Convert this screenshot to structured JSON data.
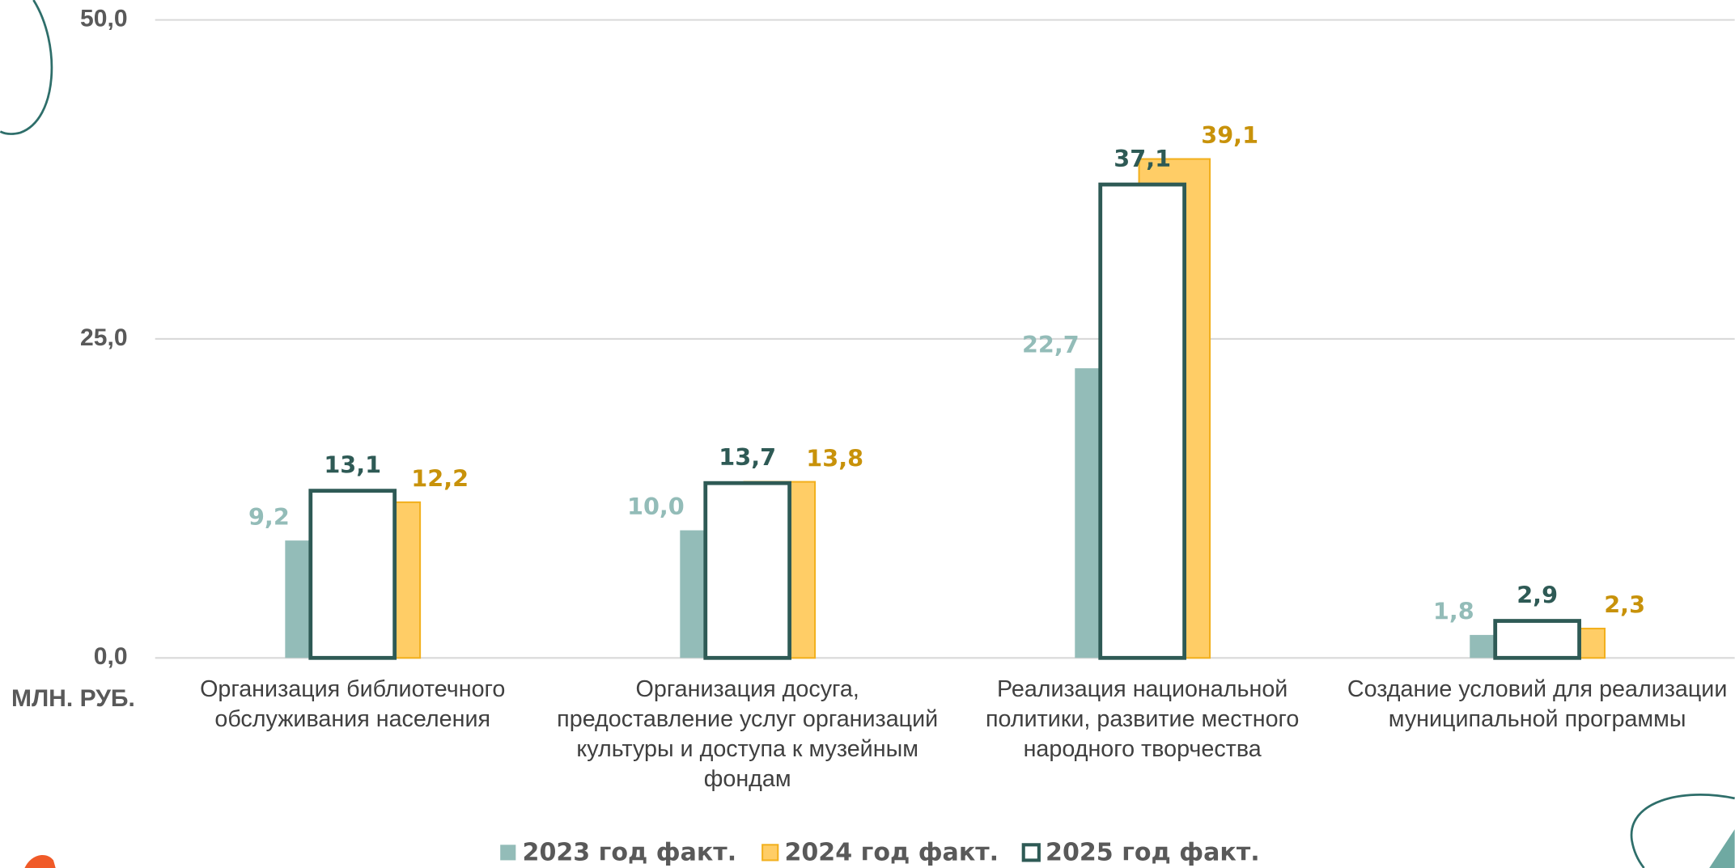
{
  "chart_data": {
    "type": "bar",
    "y_unit_label": "МЛН. РУБ.",
    "categories": [
      "Организация библиотечного обслуживания населения",
      "Организация досуга, предоставление услуг организаций культуры и доступа к музейным фондам",
      "Реализация национальной политики, развитие местного народного творчества",
      "Создание условий для реализации муниципальной программы"
    ],
    "series": [
      {
        "name": "2023 год факт.",
        "color": "#93bcb8",
        "values": [
          9.2,
          10.0,
          22.7,
          1.8
        ],
        "value_labels": [
          "9,2",
          "10,0",
          "22,7",
          "1,8"
        ]
      },
      {
        "name": "2024 год факт.",
        "color": "#ffcd66",
        "border_color": "#f2b01e",
        "values": [
          12.2,
          13.8,
          39.1,
          2.3
        ],
        "value_labels": [
          "12,2",
          "13,8",
          "39,1",
          "2,3"
        ]
      },
      {
        "name": "2025 год факт.",
        "color": "#ffffff",
        "border_color": "#2e5a55",
        "values": [
          13.1,
          13.7,
          37.1,
          2.9
        ],
        "value_labels": [
          "13,1",
          "13,7",
          "37,1",
          "2,9"
        ]
      }
    ],
    "ylim": [
      0,
      50
    ],
    "yticks": [
      {
        "value": 0,
        "label": "0,0"
      },
      {
        "value": 25,
        "label": "25,0"
      },
      {
        "value": 50,
        "label": "50,0"
      }
    ],
    "grid": true
  }
}
